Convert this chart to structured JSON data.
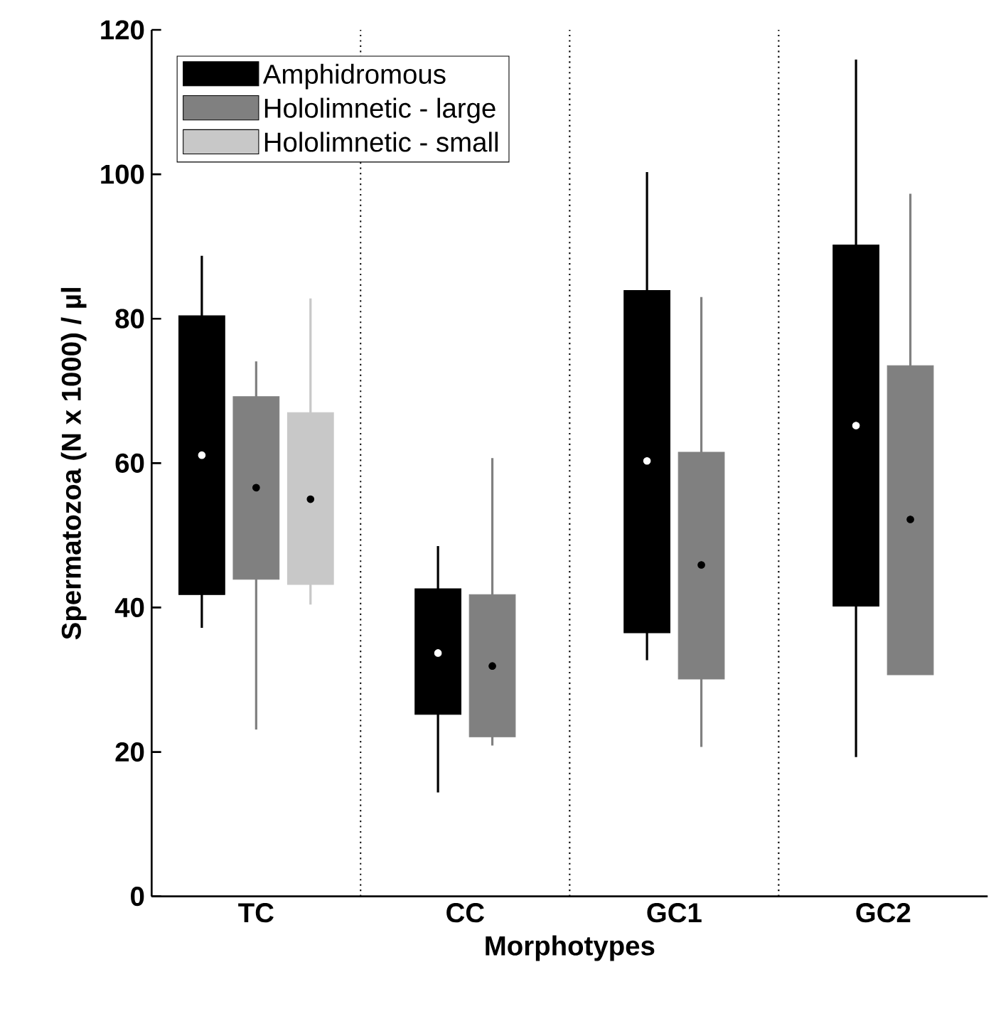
{
  "chart_data": {
    "type": "box",
    "xlabel": "Morphotypes",
    "ylabel": "Spermatozoa (N x 1000) / µl",
    "categories": [
      "TC",
      "CC",
      "GC1",
      "GC2"
    ],
    "ylim": [
      0,
      120
    ],
    "yticks": [
      0,
      20,
      40,
      60,
      80,
      100,
      120
    ],
    "legend": "top left",
    "series": [
      {
        "name": "Amphidromous",
        "color": "#000000",
        "boxes": [
          {
            "low": 37.2,
            "q1": 41.8,
            "median": 61.1,
            "q3": 80.4,
            "high": 88.7
          },
          {
            "low": 14.4,
            "q1": 25.2,
            "median": 33.7,
            "q3": 42.6,
            "high": 48.5
          },
          {
            "low": 32.7,
            "q1": 36.5,
            "median": 60.3,
            "q3": 83.9,
            "high": 100.3
          },
          {
            "low": 19.3,
            "q1": 40.2,
            "median": 65.2,
            "q3": 90.2,
            "high": 115.9
          }
        ]
      },
      {
        "name": "Hololimnetic - large",
        "color": "#808080",
        "boxes": [
          {
            "low": 23.1,
            "q1": 43.9,
            "median": 56.6,
            "q3": 69.2,
            "high": 74.1
          },
          {
            "low": 20.9,
            "q1": 22.1,
            "median": 31.9,
            "q3": 41.8,
            "high": 60.7
          },
          {
            "low": 20.7,
            "q1": 30.1,
            "median": 45.9,
            "q3": 61.5,
            "high": 83.0
          },
          {
            "low": 30.7,
            "q1": 30.7,
            "median": 52.2,
            "q3": 73.5,
            "high": 97.3
          }
        ]
      },
      {
        "name": "Hololimnetic - small",
        "color": "#c8c8c8",
        "boxes": [
          {
            "low": 40.4,
            "q1": 43.2,
            "median": 55.0,
            "q3": 67.0,
            "high": 82.8
          },
          null,
          null,
          null
        ]
      }
    ]
  }
}
